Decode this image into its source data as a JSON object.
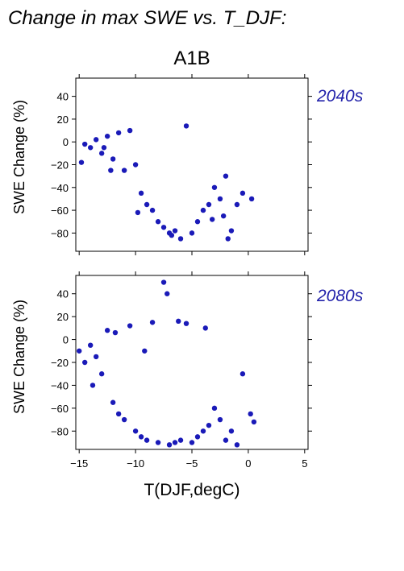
{
  "figure": {
    "title": "Change in max SWE vs. T_DJF:",
    "scenario": "A1B",
    "xlabel": "T(DJF,degC)",
    "point_color": "#1a1ab8",
    "label_color": "#2222aa"
  },
  "chart_data": [
    {
      "type": "scatter",
      "panel_label": "2040s",
      "xlabel": "T(DJF,degC)",
      "ylabel": "SWE Change (%)",
      "xlim": [
        -15.3,
        5.3
      ],
      "ylim": [
        -96,
        56
      ],
      "xticks": [
        -15,
        -10,
        -5,
        0,
        5
      ],
      "yticks": [
        40,
        20,
        0,
        -20,
        -40,
        -60,
        -80
      ],
      "grid": false,
      "series": [
        {
          "color": "#1a1ab8",
          "points": [
            [
              -14.5,
              -2
            ],
            [
              -14.0,
              -5
            ],
            [
              -13.5,
              2
            ],
            [
              -13.0,
              -10
            ],
            [
              -12.8,
              -5
            ],
            [
              -12.5,
              5
            ],
            [
              -12.0,
              -15
            ],
            [
              -11.5,
              8
            ],
            [
              -11.0,
              -25
            ],
            [
              -10.5,
              10
            ],
            [
              -10.0,
              -20
            ],
            [
              -9.5,
              -45
            ],
            [
              -9.0,
              -55
            ],
            [
              -8.5,
              -60
            ],
            [
              -8.0,
              -70
            ],
            [
              -7.5,
              -75
            ],
            [
              -7.0,
              -80
            ],
            [
              -6.5,
              -78
            ],
            [
              -6.0,
              -85
            ],
            [
              -5.5,
              14
            ],
            [
              -5.0,
              -80
            ],
            [
              -4.5,
              -70
            ],
            [
              -4.0,
              -60
            ],
            [
              -3.5,
              -55
            ],
            [
              -3.0,
              -40
            ],
            [
              -2.5,
              -50
            ],
            [
              -2.0,
              -30
            ],
            [
              -1.5,
              -78
            ],
            [
              -1.0,
              -55
            ],
            [
              -0.5,
              -45
            ],
            [
              0.3,
              -50
            ],
            [
              -1.8,
              -85
            ],
            [
              -14.8,
              -18
            ],
            [
              -12.2,
              -25
            ],
            [
              -9.8,
              -62
            ],
            [
              -6.8,
              -82
            ],
            [
              -3.2,
              -68
            ],
            [
              -2.2,
              -65
            ]
          ]
        }
      ]
    },
    {
      "type": "scatter",
      "panel_label": "2080s",
      "xlabel": "T(DJF,degC)",
      "ylabel": "SWE Change (%)",
      "xlim": [
        -15.3,
        5.3
      ],
      "ylim": [
        -96,
        56
      ],
      "xticks": [
        -15,
        -10,
        -5,
        0,
        5
      ],
      "yticks": [
        40,
        20,
        0,
        -20,
        -40,
        -60,
        -80
      ],
      "grid": false,
      "series": [
        {
          "color": "#1a1ab8",
          "points": [
            [
              -15.0,
              -10
            ],
            [
              -14.5,
              -20
            ],
            [
              -14.0,
              -5
            ],
            [
              -13.5,
              -15
            ],
            [
              -13.0,
              -30
            ],
            [
              -12.5,
              8
            ],
            [
              -12.0,
              -55
            ],
            [
              -11.5,
              -65
            ],
            [
              -11.0,
              -70
            ],
            [
              -10.5,
              12
            ],
            [
              -10.0,
              -80
            ],
            [
              -9.5,
              -85
            ],
            [
              -9.0,
              -88
            ],
            [
              -8.5,
              15
            ],
            [
              -8.0,
              -90
            ],
            [
              -7.5,
              50
            ],
            [
              -7.2,
              40
            ],
            [
              -7.0,
              -92
            ],
            [
              -6.5,
              -90
            ],
            [
              -6.0,
              -88
            ],
            [
              -5.5,
              14
            ],
            [
              -5.0,
              -90
            ],
            [
              -4.5,
              -85
            ],
            [
              -4.0,
              -80
            ],
            [
              -3.5,
              -75
            ],
            [
              -3.0,
              -60
            ],
            [
              -2.5,
              -70
            ],
            [
              -2.0,
              -88
            ],
            [
              -1.5,
              -80
            ],
            [
              -1.0,
              -92
            ],
            [
              -0.5,
              -30
            ],
            [
              0.2,
              -65
            ],
            [
              0.5,
              -72
            ],
            [
              -13.8,
              -40
            ],
            [
              -11.8,
              6
            ],
            [
              -9.2,
              -10
            ],
            [
              -6.2,
              16
            ],
            [
              -3.8,
              10
            ]
          ]
        }
      ]
    }
  ]
}
